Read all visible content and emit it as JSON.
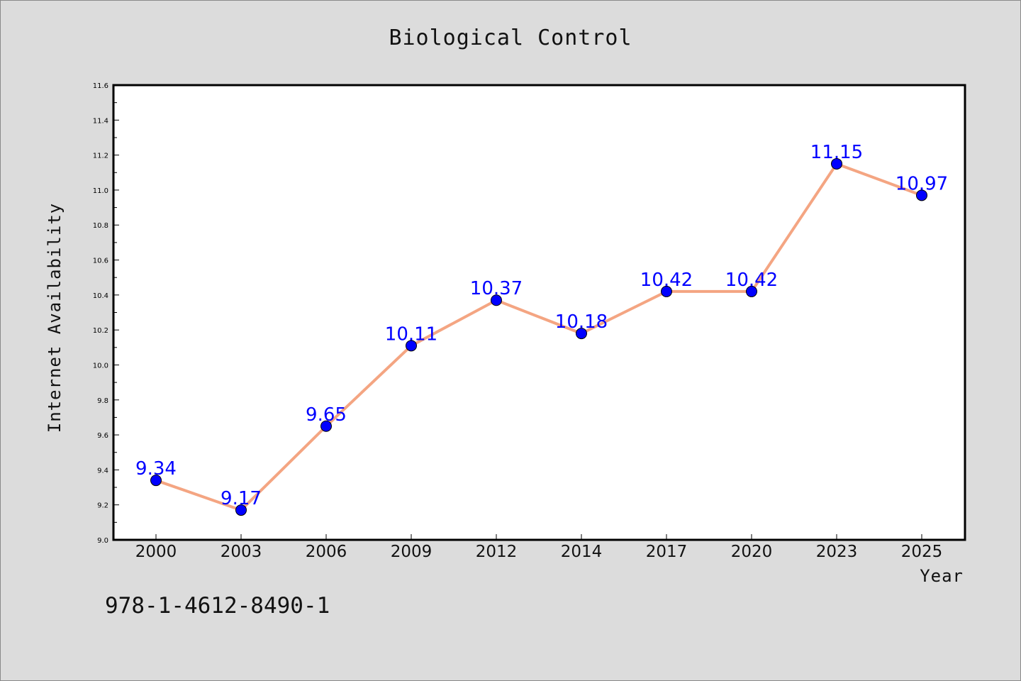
{
  "chart_data": {
    "type": "line",
    "title": "Biological Control",
    "xlabel": "Year",
    "ylabel": "Internet Availability",
    "categories": [
      "2000",
      "2003",
      "2006",
      "2009",
      "2012",
      "2014",
      "2017",
      "2020",
      "2023",
      "2025"
    ],
    "series": [
      {
        "values": [
          9.34,
          9.17,
          9.65,
          10.11,
          10.37,
          10.18,
          10.42,
          10.42,
          11.15,
          10.97
        ]
      }
    ],
    "data_labels": [
      "9.34",
      "9.17",
      "9.65",
      "10.11",
      "10.37",
      "10.18",
      "10.42",
      "10.42",
      "11.15",
      "10.97"
    ],
    "ylim": [
      9.0,
      11.6
    ],
    "yticks": [
      "9.0",
      "9.2",
      "9.4",
      "9.6",
      "9.8",
      "10.0",
      "10.2",
      "10.4",
      "10.6",
      "10.8",
      "11.0",
      "11.2",
      "11.4",
      "11.6"
    ],
    "line_color": "#f4a582",
    "marker_color": "#0000ff",
    "label_color": "#0000ff",
    "grid": false,
    "legend": "none"
  },
  "footer": {
    "isbn": "978-1-4612-8490-1"
  }
}
